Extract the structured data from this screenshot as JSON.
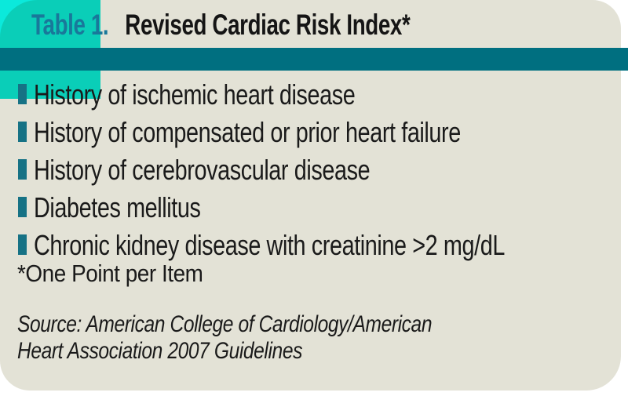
{
  "header": {
    "table_label": "Table 1.",
    "title": "Revised Cardiac Risk Index*"
  },
  "risk_list": {
    "items": [
      {
        "text": "History of ischemic heart disease"
      },
      {
        "text": "History of compensated or prior heart failure"
      },
      {
        "text": "History of cerebrovascular disease"
      },
      {
        "text": "Diabetes mellitus"
      },
      {
        "text": "Chronic kidney disease with creatinine >2 mg/dL"
      }
    ]
  },
  "footnote": {
    "text": "*One Point per Item"
  },
  "source": {
    "line1": "Source: American College of Cardiology/American",
    "line2": "Heart Association 2007 Guidelines"
  },
  "colors": {
    "panel_beige": "#E3E2D6",
    "accent_cyan": "#0BE9DB",
    "divider_teal": "#006F80",
    "label_teal": "#19789A",
    "bullet_teal": "#167285",
    "text_black": "#1A1A1A"
  }
}
